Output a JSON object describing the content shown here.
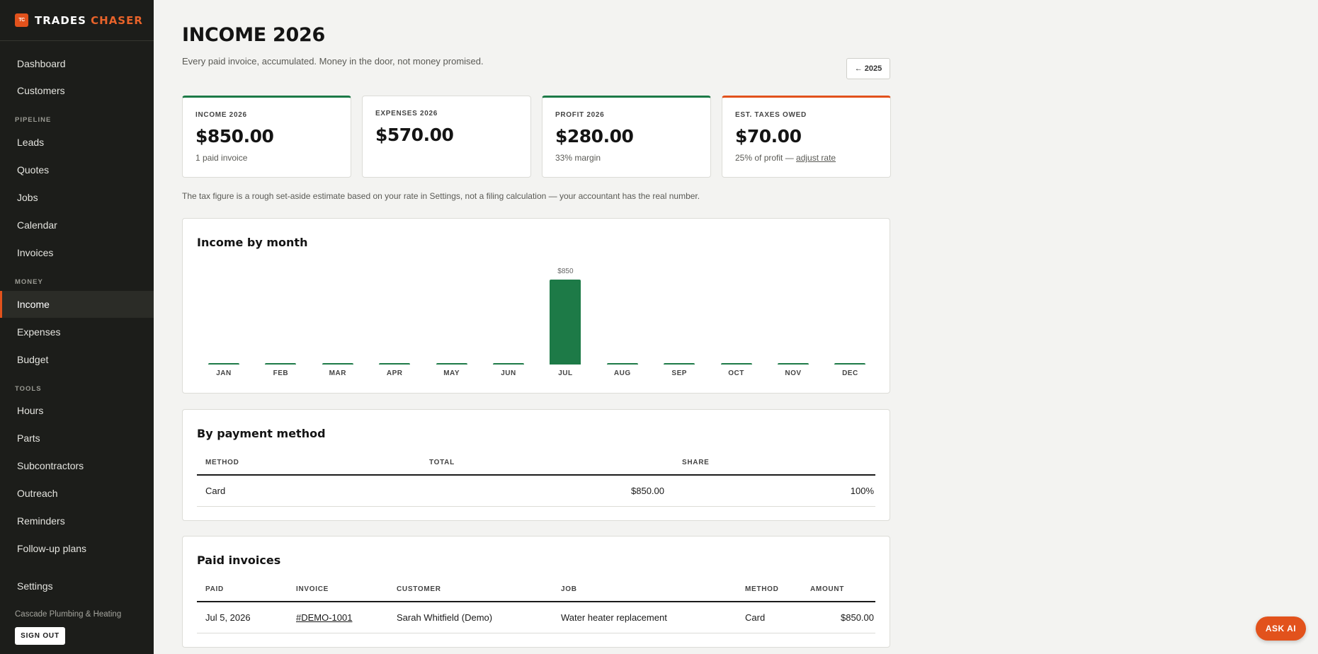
{
  "brand": {
    "logo_text": "TC",
    "name_part1": "TRADES",
    "name_part2": "CHASER"
  },
  "sidebar": {
    "items": {
      "dashboard": "Dashboard",
      "customers": "Customers",
      "leads": "Leads",
      "quotes": "Quotes",
      "jobs": "Jobs",
      "calendar": "Calendar",
      "invoices": "Invoices",
      "income": "Income",
      "expenses": "Expenses",
      "budget": "Budget",
      "hours": "Hours",
      "parts": "Parts",
      "subcontractors": "Subcontractors",
      "outreach": "Outreach",
      "reminders": "Reminders",
      "followup": "Follow-up plans",
      "settings": "Settings"
    },
    "sections": {
      "pipeline": "PIPELINE",
      "money": "MONEY",
      "tools": "TOOLS"
    },
    "active": "Income",
    "company": "Cascade Plumbing & Heating",
    "signout": "SIGN OUT"
  },
  "header": {
    "title": "INCOME 2026",
    "subtitle": "Every paid invoice, accumulated. Money in the door, not money promised.",
    "prev_year_button": "← 2025"
  },
  "stats": {
    "income": {
      "label": "INCOME 2026",
      "value": "$850.00",
      "note": "1 paid invoice"
    },
    "expenses": {
      "label": "EXPENSES 2026",
      "value": "$570.00"
    },
    "profit": {
      "label": "PROFIT 2026",
      "value": "$280.00",
      "note": "33% margin"
    },
    "taxes": {
      "label": "EST. TAXES OWED",
      "value": "$70.00",
      "note": "25% of profit — ",
      "link": "adjust rate"
    }
  },
  "tax_note": "The tax figure is a rough set-aside estimate based on your rate in Settings, not a filing calculation — your accountant has the real number.",
  "chart_panel": {
    "title": "Income by month"
  },
  "chart_data": {
    "type": "bar",
    "title": "Income by month",
    "categories": [
      "JAN",
      "FEB",
      "MAR",
      "APR",
      "MAY",
      "JUN",
      "JUL",
      "AUG",
      "SEP",
      "OCT",
      "NOV",
      "DEC"
    ],
    "values": [
      0,
      0,
      0,
      0,
      0,
      0,
      850,
      0,
      0,
      0,
      0,
      0
    ],
    "data_labels": {
      "JUL": "$850"
    },
    "color": "#1d7a47",
    "ylim": [
      0,
      850
    ],
    "grid": false
  },
  "payment_method": {
    "title": "By payment method",
    "headers": {
      "method": "METHOD",
      "total": "TOTAL",
      "share": "SHARE"
    },
    "rows": [
      {
        "method": "Card",
        "total": "$850.00",
        "share": "100%"
      }
    ]
  },
  "paid_invoices": {
    "title": "Paid invoices",
    "headers": {
      "paid": "PAID",
      "invoice": "INVOICE",
      "customer": "CUSTOMER",
      "job": "JOB",
      "method": "METHOD",
      "amount": "AMOUNT"
    },
    "rows": [
      {
        "paid": "Jul 5, 2026",
        "invoice": "#DEMO-1001",
        "customer": "Sarah Whitfield (Demo)",
        "job": "Water heater replacement",
        "method": "Card",
        "amount": "$850.00"
      }
    ]
  },
  "ask_ai": "ASK AI",
  "colors": {
    "accent": "#e2521c",
    "green": "#1d7a47",
    "sidebar_bg": "#1c1d1a"
  }
}
